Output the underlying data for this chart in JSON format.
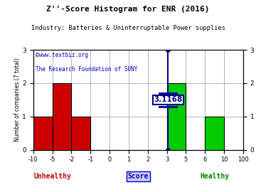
{
  "title": "Z''-Score Histogram for ENR (2016)",
  "subtitle1": "©www.textbiz.org",
  "subtitle2": "The Research Foundation of SUNY",
  "industry_label": "Industry: Batteries & Uninterruptable Power supplies",
  "xlabel": "Score",
  "ylabel": "Number of companies (7 total)",
  "unhealthy_label": "Unhealthy",
  "healthy_label": "Healthy",
  "bin_edges": [
    -10,
    -5,
    -2,
    -1,
    0,
    1,
    2,
    3,
    5,
    6,
    10,
    100
  ],
  "bar_heights": [
    1,
    2,
    1,
    0,
    0,
    0,
    0,
    2,
    0,
    1,
    0
  ],
  "bar_colors": [
    "#cc0000",
    "#cc0000",
    "#cc0000",
    "#ffffff",
    "#ffffff",
    "#ffffff",
    "#ffffff",
    "#00cc00",
    "#ffffff",
    "#00cc00",
    "#ffffff"
  ],
  "enr_score": 3.1168,
  "enr_label": "3.1168",
  "ylim": [
    0,
    3
  ],
  "yticks": [
    0,
    1,
    2,
    3
  ],
  "grid_color": "#999999",
  "bg_color": "#ffffff",
  "line_color": "#00008b",
  "title_color": "#000000",
  "subtitle_color": "#0000cc",
  "industry_color": "#000000",
  "unhealthy_color": "#cc0000",
  "healthy_color": "#008800",
  "score_color": "#0000cc",
  "tick_labels": [
    "-10",
    "-5",
    "-2",
    "-1",
    "0",
    "1",
    "2",
    "3",
    "5",
    "6",
    "10",
    "100"
  ]
}
